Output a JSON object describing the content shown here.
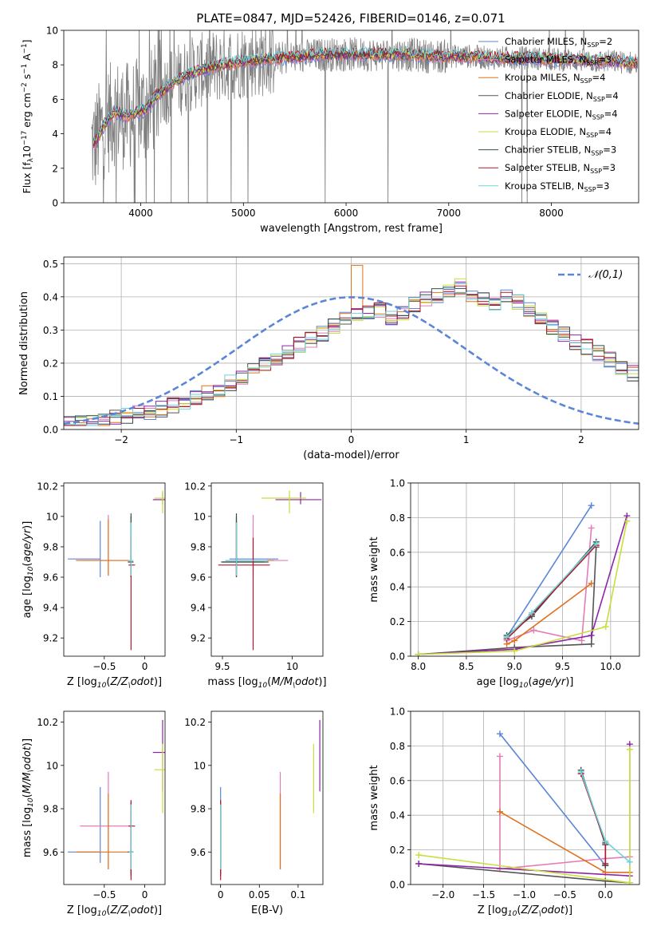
{
  "figure_title": "PLATE=0847, MJD=52426, FIBERID=0146, z=0.071",
  "colors": {
    "Chabrier MILES": "#5b86d8",
    "Salpeter MILES": "#e37cb8",
    "Kroupa MILES": "#e0701c",
    "Chabrier ELODIE": "#555555",
    "Salpeter ELODIE": "#8e24aa",
    "Kroupa ELODIE": "#c9dd3c",
    "Chabrier STELIB": "#2f4f4f",
    "Salpeter STELIB": "#b2182b",
    "Kroupa STELIB": "#6fd3d8",
    "data": "#808080",
    "gaussian": "#5b86d8"
  },
  "chart_data": [
    {
      "id": "spectrum",
      "type": "line",
      "title": "PLATE=0847, MJD=52426, FIBERID=0146, z=0.071",
      "xlabel": "wavelength [Angstrom, rest frame]",
      "ylabel": "Flux [f$_\\lambda$10$^{-17}$ erg cm$^{-2}$ s$^{-1}$ A$^{-1}$]",
      "ylabel_parts": {
        "a": "Flux [f",
        "b": "λ",
        "c": "10",
        "d": "−17",
        "e": " erg cm",
        "f": "−2",
        "g": " s",
        "h": "−1",
        "i": " A",
        "j": "−1",
        "k": "]"
      },
      "xlim": [
        3250,
        8850
      ],
      "ylim": [
        0,
        10
      ],
      "xticks": [
        4000,
        5000,
        6000,
        7000,
        8000
      ],
      "yticks": [
        0,
        2,
        4,
        6,
        8,
        10
      ],
      "continuum": {
        "x": [
          3550,
          3650,
          3750,
          3850,
          3950,
          4050,
          4150,
          4300,
          4450,
          4600,
          4800,
          5000,
          5200,
          5400,
          5600,
          5800,
          6000,
          6200,
          6400,
          6600,
          6800,
          7000,
          7200,
          7400,
          7600,
          7800,
          8000,
          8200,
          8400,
          8600,
          8800
        ],
        "y": [
          3.4,
          4.6,
          5.3,
          5.0,
          5.2,
          5.4,
          6.2,
          6.9,
          7.4,
          7.7,
          8.0,
          8.2,
          8.3,
          8.4,
          8.5,
          8.6,
          8.6,
          8.6,
          8.6,
          8.6,
          8.5,
          8.5,
          8.5,
          8.4,
          8.4,
          8.4,
          8.3,
          8.3,
          8.2,
          8.2,
          8.1
        ]
      },
      "legend": [
        {
          "imf": "Chabrier",
          "lib": "MILES",
          "n": "2"
        },
        {
          "imf": "Salpeter",
          "lib": "MILES",
          "n": "3"
        },
        {
          "imf": "Kroupa",
          "lib": "MILES",
          "n": "4"
        },
        {
          "imf": "Chabrier",
          "lib": "ELODIE",
          "n": "4"
        },
        {
          "imf": "Salpeter",
          "lib": "ELODIE",
          "n": "4"
        },
        {
          "imf": "Kroupa",
          "lib": "ELODIE",
          "n": "4"
        },
        {
          "imf": "Chabrier",
          "lib": "STELIB",
          "n": "3"
        },
        {
          "imf": "Salpeter",
          "lib": "STELIB",
          "n": "3"
        },
        {
          "imf": "Kroupa",
          "lib": "STELIB",
          "n": "3"
        }
      ],
      "legend_nsym": "N",
      "legend_nsub": "SSP",
      "legend_placement": "right"
    },
    {
      "id": "residuals",
      "type": "step",
      "xlabel": "(data-model)/error",
      "ylabel": "Normed distribution",
      "xlim": [
        -2.5,
        2.5
      ],
      "ylim": [
        0,
        0.52
      ],
      "xticks": [
        -2,
        -1,
        0,
        1,
        2
      ],
      "yticks": [
        0.0,
        0.1,
        0.2,
        0.3,
        0.4,
        0.5
      ],
      "grid": true,
      "bin_width": 0.1,
      "bin_start": -2.5,
      "base_hist": [
        0.02,
        0.021,
        0.024,
        0.03,
        0.035,
        0.04,
        0.047,
        0.054,
        0.062,
        0.072,
        0.083,
        0.095,
        0.108,
        0.122,
        0.14,
        0.16,
        0.18,
        0.2,
        0.215,
        0.235,
        0.255,
        0.27,
        0.29,
        0.31,
        0.33,
        0.345,
        0.355,
        0.36,
        0.34,
        0.355,
        0.375,
        0.39,
        0.4,
        0.415,
        0.43,
        0.41,
        0.395,
        0.375,
        0.4,
        0.385,
        0.36,
        0.33,
        0.31,
        0.285,
        0.265,
        0.25,
        0.23,
        0.21,
        0.19,
        0.17,
        0.155,
        0.14,
        0.12,
        0.1,
        0.09,
        0.08,
        0.07,
        0.06,
        0.05,
        0.04
      ],
      "legend_label": "$\\mathcal{N}(0,1)$",
      "legend_placement": "top-right"
    },
    {
      "id": "age_vs_Z",
      "type": "errorbar",
      "xlabel": "Z [log$_{10}$($Z/Z_\\odot$)]",
      "ylabel": "age  [log$_{10}$($age/yr$)]",
      "xlim": [
        -1.0,
        0.25
      ],
      "ylim": [
        9.08,
        10.22
      ],
      "xticks": [
        -0.5,
        0.0
      ],
      "yticks": [
        9.2,
        9.4,
        9.6,
        9.8,
        10.0,
        10.2
      ]
    },
    {
      "id": "age_vs_mass",
      "type": "errorbar",
      "xlabel": "mass [log$_{10}$($M/M_\\odot$)]",
      "ylabel": "",
      "xlim": [
        9.42,
        10.22
      ],
      "ylim": [
        9.08,
        10.22
      ],
      "xticks": [
        9.5,
        10.0
      ],
      "yticks": [
        9.2,
        9.4,
        9.6,
        9.8,
        10.0,
        10.2
      ]
    },
    {
      "id": "weight_vs_age",
      "type": "line",
      "xlabel": "age  [log$_{10}$($age/yr$)]",
      "ylabel": "mass weight",
      "xlim": [
        7.92,
        10.3
      ],
      "ylim": [
        0,
        1.0
      ],
      "xticks": [
        8.0,
        8.5,
        9.0,
        9.5,
        10.0
      ],
      "yticks": [
        0.0,
        0.2,
        0.4,
        0.6,
        0.8,
        1.0
      ],
      "grid": true,
      "series": [
        {
          "key": "Chabrier MILES",
          "x": [
            8.92,
            9.8
          ],
          "y": [
            0.11,
            0.87
          ]
        },
        {
          "key": "Salpeter MILES",
          "x": [
            8.92,
            9.2,
            9.7,
            9.8
          ],
          "y": [
            0.09,
            0.15,
            0.09,
            0.74
          ]
        },
        {
          "key": "Kroupa MILES",
          "x": [
            8.92,
            9.0,
            9.8
          ],
          "y": [
            0.07,
            0.09,
            0.42
          ]
        },
        {
          "key": "Chabrier ELODIE",
          "x": [
            8.0,
            9.0,
            9.8,
            9.85
          ],
          "y": [
            0.01,
            0.05,
            0.07,
            0.63
          ]
        },
        {
          "key": "Salpeter ELODIE",
          "x": [
            8.0,
            9.0,
            9.8,
            10.17
          ],
          "y": [
            0.01,
            0.04,
            0.12,
            0.81
          ]
        },
        {
          "key": "Kroupa ELODIE",
          "x": [
            8.0,
            9.0,
            9.95,
            10.17
          ],
          "y": [
            0.01,
            0.03,
            0.17,
            0.78
          ]
        },
        {
          "key": "Chabrier STELIB",
          "x": [
            8.92,
            9.18,
            9.85
          ],
          "y": [
            0.12,
            0.23,
            0.66
          ]
        },
        {
          "key": "Salpeter STELIB",
          "x": [
            8.92,
            9.18,
            9.85
          ],
          "y": [
            0.1,
            0.24,
            0.64
          ]
        },
        {
          "key": "Kroupa STELIB",
          "x": [
            8.92,
            9.18,
            9.85
          ],
          "y": [
            0.11,
            0.25,
            0.65
          ]
        }
      ]
    },
    {
      "id": "mass_vs_Z",
      "type": "errorbar",
      "xlabel": "Z [log$_{10}$($Z/Z_\\odot$)]",
      "ylabel": "mass [log$_{10}$($M/M_\\odot$)]",
      "xlim": [
        -1.0,
        0.25
      ],
      "ylim": [
        9.45,
        10.25
      ],
      "xticks": [
        -0.5,
        0.0
      ],
      "yticks": [
        9.6,
        9.8,
        10.0,
        10.2
      ]
    },
    {
      "id": "mass_vs_EBV",
      "type": "errorbar",
      "xlabel": "E(B-V)",
      "ylabel": "",
      "xlim": [
        -0.012,
        0.132
      ],
      "ylim": [
        9.45,
        10.25
      ],
      "xticks": [
        0.0,
        0.05,
        0.1
      ],
      "yticks": [
        9.6,
        9.8,
        10.0,
        10.2
      ]
    },
    {
      "id": "weight_vs_Z",
      "type": "line",
      "xlabel": "Z [log$_{10}$($Z/Z_\\odot$)]",
      "ylabel": "mass weight",
      "xlim": [
        -2.4,
        0.42
      ],
      "ylim": [
        0,
        1.0
      ],
      "xticks": [
        -2.0,
        -1.5,
        -1.0,
        -0.5,
        0.0
      ],
      "yticks": [
        0.0,
        0.2,
        0.4,
        0.6,
        0.8,
        1.0
      ],
      "grid": true,
      "series": [
        {
          "key": "Chabrier MILES",
          "x": [
            -1.3,
            0.0
          ],
          "y": [
            0.87,
            0.11
          ]
        },
        {
          "key": "Salpeter MILES",
          "x": [
            -1.3,
            -1.3,
            0.0,
            0.3
          ],
          "y": [
            0.74,
            0.09,
            0.15,
            0.16
          ]
        },
        {
          "key": "Kroupa MILES",
          "x": [
            -1.3,
            0.0,
            0.3
          ],
          "y": [
            0.42,
            0.07,
            0.07
          ]
        },
        {
          "key": "Chabrier ELODIE",
          "x": [
            -2.3,
            0.0,
            0.3
          ],
          "y": [
            0.12,
            0.02,
            0.01
          ]
        },
        {
          "key": "Salpeter ELODIE",
          "x": [
            -2.3,
            0.3,
            0.3
          ],
          "y": [
            0.12,
            0.05,
            0.81
          ]
        },
        {
          "key": "Kroupa ELODIE",
          "x": [
            -2.3,
            0.3,
            0.3
          ],
          "y": [
            0.17,
            0.01,
            0.78
          ]
        },
        {
          "key": "Chabrier STELIB",
          "x": [
            -0.3,
            0.0,
            0.0
          ],
          "y": [
            0.66,
            0.23,
            0.11
          ]
        },
        {
          "key": "Salpeter STELIB",
          "x": [
            -0.3,
            0.0,
            0.0
          ],
          "y": [
            0.64,
            0.24,
            0.12
          ]
        },
        {
          "key": "Kroupa STELIB",
          "x": [
            -0.3,
            0.0,
            0.3
          ],
          "y": [
            0.65,
            0.25,
            0.13
          ]
        }
      ]
    }
  ],
  "fits": [
    {
      "key": "Chabrier MILES",
      "Z": -0.55,
      "Zlo": 0.4,
      "Zhi": 0.0,
      "age": 9.72,
      "age_lo": 0.12,
      "age_hi": 0.25,
      "mass": 9.6,
      "m_lo": 0.05,
      "m_hi": 0.3,
      "ebv": 0.0
    },
    {
      "key": "Salpeter MILES",
      "Z": -0.45,
      "Zlo": 0.35,
      "Zhi": 0.28,
      "age": 9.71,
      "age_lo": 0.1,
      "age_hi": 0.3,
      "mass": 9.72,
      "m_lo": 0.2,
      "m_hi": 0.25,
      "ebv": 0.077
    },
    {
      "key": "Kroupa MILES",
      "Z": -0.45,
      "Zlo": 0.4,
      "Zhi": 0.28,
      "age": 9.71,
      "age_lo": 0.1,
      "age_hi": 0.27,
      "mass": 9.6,
      "m_lo": 0.08,
      "m_hi": 0.27,
      "ebv": 0.077
    },
    {
      "key": "Chabrier ELODIE",
      "Z": -0.17,
      "Zlo": 0.03,
      "Zhi": 0.03,
      "age": 9.7,
      "age_lo": 0.1,
      "age_hi": 0.3,
      "mass": 9.6,
      "m_lo": 0.11,
      "m_hi": 0.2,
      "ebv": 0.0
    },
    {
      "key": "Salpeter ELODIE",
      "Z": 0.22,
      "Zlo": 0.12,
      "Zhi": 0.03,
      "age": 10.11,
      "age_lo": 0.03,
      "age_hi": 0.05,
      "mass": 10.06,
      "m_lo": 0.18,
      "m_hi": 0.15,
      "ebv": 0.128
    },
    {
      "key": "Kroupa ELODIE",
      "Z": 0.22,
      "Zlo": 0.1,
      "Zhi": 0.05,
      "age": 10.12,
      "age_lo": 0.1,
      "age_hi": 0.05,
      "mass": 9.98,
      "m_lo": 0.2,
      "m_hi": 0.12,
      "ebv": 0.12
    },
    {
      "key": "Chabrier STELIB",
      "Z": -0.17,
      "Zlo": 0.04,
      "Zhi": 0.03,
      "age": 9.7,
      "age_lo": 0.1,
      "age_hi": 0.32,
      "mass": 9.6,
      "m_lo": 0.1,
      "m_hi": 0.23,
      "ebv": 0.0
    },
    {
      "key": "Salpeter STELIB",
      "Z": -0.17,
      "Zlo": 0.03,
      "Zhi": 0.05,
      "age": 9.68,
      "age_lo": 0.56,
      "age_hi": 0.18,
      "mass": 9.72,
      "m_lo": 0.25,
      "m_hi": 0.12,
      "ebv": 0.0
    },
    {
      "key": "Kroupa STELIB",
      "Z": -0.17,
      "Zlo": 0.03,
      "Zhi": 0.03,
      "age": 9.71,
      "age_lo": 0.1,
      "age_hi": 0.25,
      "mass": 9.6,
      "m_lo": 0.08,
      "m_hi": 0.22,
      "ebv": 0.0
    }
  ]
}
